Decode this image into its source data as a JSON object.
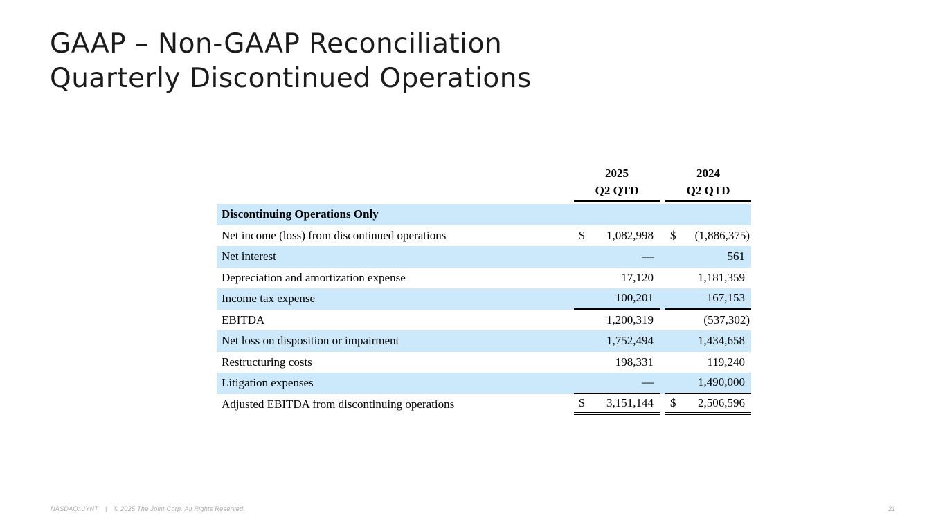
{
  "title": {
    "line1": "GAAP – Non-GAAP Reconciliation",
    "line2": "Quarterly Discontinued Operations"
  },
  "table": {
    "col_headers": [
      {
        "year": "2025",
        "period": "Q2 QTD"
      },
      {
        "year": "2024",
        "period": "Q2 QTD"
      }
    ],
    "rows": [
      {
        "label": "Discontinuing Operations Only",
        "section": true,
        "highlight": true,
        "v2025": "",
        "v2024": ""
      },
      {
        "label": "Net income (loss) from discontinued operations",
        "dollar": true,
        "v2025": "1,082,998",
        "v2024": "(1,886,375)"
      },
      {
        "label": "Net interest",
        "highlight": true,
        "v2025": "—",
        "v2024": "561"
      },
      {
        "label": "Depreciation and amortization expense",
        "v2025": "17,120",
        "v2024": "1,181,359"
      },
      {
        "label": "Income tax expense",
        "highlight": true,
        "underline": true,
        "v2025": "100,201",
        "v2024": "167,153"
      },
      {
        "label": "EBITDA",
        "v2025": "1,200,319",
        "v2024": "(537,302)"
      },
      {
        "label": "Net loss on disposition or impairment",
        "highlight": true,
        "v2025": "1,752,494",
        "v2024": "1,434,658"
      },
      {
        "label": "Restructuring costs",
        "v2025": "198,331",
        "v2024": "119,240"
      },
      {
        "label": "Litigation expenses",
        "highlight": true,
        "underline": true,
        "v2025": "—",
        "v2024": "1,490,000"
      },
      {
        "label": "Adjusted EBITDA from discontinuing operations",
        "dollar": true,
        "double_underline": true,
        "v2025": "3,151,144",
        "v2024": "2,506,596"
      }
    ]
  },
  "footer": {
    "ticker": "NASDAQ: JYNT",
    "separator": "|",
    "copyright": "© 2025 The Joint Corp. All Rights Reserved.",
    "page_number": "21"
  },
  "colors": {
    "row_highlight": "#cbe9fa",
    "title_text": "#1b1b1b",
    "footer_text": "#a9abae"
  }
}
